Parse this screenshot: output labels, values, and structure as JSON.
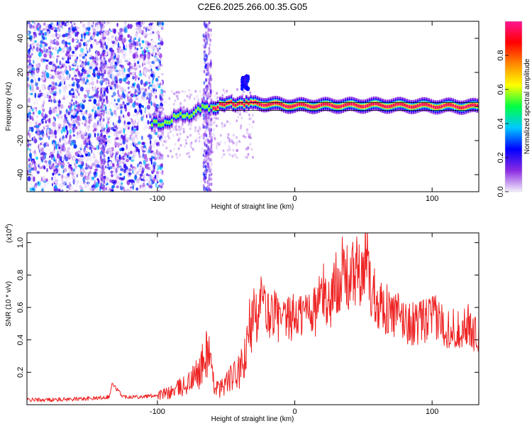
{
  "title": "C2E6.2025.266.00.35.G05",
  "colors": {
    "snr_line": "#ee2222",
    "frame": "#000000"
  },
  "chart_data": [
    {
      "type": "heatmap",
      "title": "C2E6.2025.266.00.35.G05",
      "xlabel": "Height of straight line (km)",
      "ylabel": "Frequency (Hz)",
      "xlim": [
        -195,
        134
      ],
      "ylim": [
        -50,
        50
      ],
      "xticks": [
        -100,
        0,
        100
      ],
      "xtick_labels": [
        "-100",
        "0",
        "100"
      ],
      "yticks": [
        -40,
        -20,
        0,
        20,
        40
      ],
      "ytick_labels": [
        "-40",
        "-20",
        "0",
        "20",
        "40"
      ],
      "colorbar": {
        "label": "Normalized spectral amplitude",
        "range": [
          0,
          1
        ],
        "ticks": [
          0.0,
          0.2,
          0.4,
          0.6,
          0.8
        ],
        "tick_labels": [
          "0.0",
          "0.2",
          "0.4",
          "0.6",
          "0.8"
        ],
        "colors": [
          "#f4eefc",
          "#8a2be2",
          "#0000ff",
          "#00c8ff",
          "#00ff44",
          "#ffff00",
          "#ff8800",
          "#ff0000",
          "#ff1493"
        ]
      },
      "signal_track": [
        {
          "x": -104,
          "f": -11
        },
        {
          "x": -95,
          "f": -9
        },
        {
          "x": -85,
          "f": -6
        },
        {
          "x": -75,
          "f": -4
        },
        {
          "x": -65,
          "f": -1
        },
        {
          "x": -55,
          "f": 1
        },
        {
          "x": -45,
          "f": 2
        },
        {
          "x": -30,
          "f": 2
        },
        {
          "x": 0,
          "f": 0.5
        },
        {
          "x": 60,
          "f": 0.8
        },
        {
          "x": 134,
          "f": 0
        }
      ],
      "noise_region_x": [
        -195,
        -100
      ]
    },
    {
      "type": "line",
      "xlabel": "Height of straight line (km)",
      "ylabel": "SNR (10 * v/v)",
      "scale_label": "(x10",
      "scale_exponent": "4",
      "xlim": [
        -195,
        134
      ],
      "ylim": [
        0,
        1.06
      ],
      "xticks": [
        -100,
        0,
        100
      ],
      "xtick_labels": [
        "-100",
        "0",
        "100"
      ],
      "yticks": [
        0.2,
        0.4,
        0.6,
        0.8,
        1.0
      ],
      "ytick_labels": [
        "0.2",
        "0.4",
        "0.6",
        "0.8",
        "1.0"
      ],
      "series": [
        {
          "name": "SNR",
          "color": "#ee2222",
          "x": [
            -195,
            -180,
            -160,
            -145,
            -135,
            -133,
            -125,
            -110,
            -100,
            -92,
            -85,
            -80,
            -75,
            -70,
            -65,
            -63,
            -60,
            -55,
            -50,
            -45,
            -40,
            -35,
            -32,
            -30,
            -27,
            -25,
            -22,
            -20,
            -15,
            -10,
            -5,
            0,
            5,
            10,
            15,
            20,
            25,
            30,
            35,
            40,
            45,
            50,
            52,
            55,
            60,
            65,
            70,
            75,
            80,
            85,
            90,
            95,
            100,
            105,
            110,
            115,
            120,
            125,
            130,
            134
          ],
          "y": [
            0.03,
            0.03,
            0.035,
            0.04,
            0.05,
            0.13,
            0.05,
            0.05,
            0.06,
            0.07,
            0.1,
            0.12,
            0.15,
            0.2,
            0.28,
            0.38,
            0.15,
            0.09,
            0.14,
            0.17,
            0.2,
            0.3,
            0.55,
            0.8,
            0.45,
            0.65,
            0.6,
            0.55,
            0.58,
            0.5,
            0.52,
            0.55,
            0.55,
            0.6,
            0.58,
            0.7,
            0.62,
            0.75,
            0.82,
            0.75,
            0.85,
            0.72,
            1.05,
            0.72,
            0.66,
            0.6,
            0.56,
            0.55,
            0.52,
            0.5,
            0.5,
            0.52,
            0.54,
            0.52,
            0.48,
            0.47,
            0.46,
            0.5,
            0.45,
            0.42
          ]
        }
      ]
    }
  ]
}
